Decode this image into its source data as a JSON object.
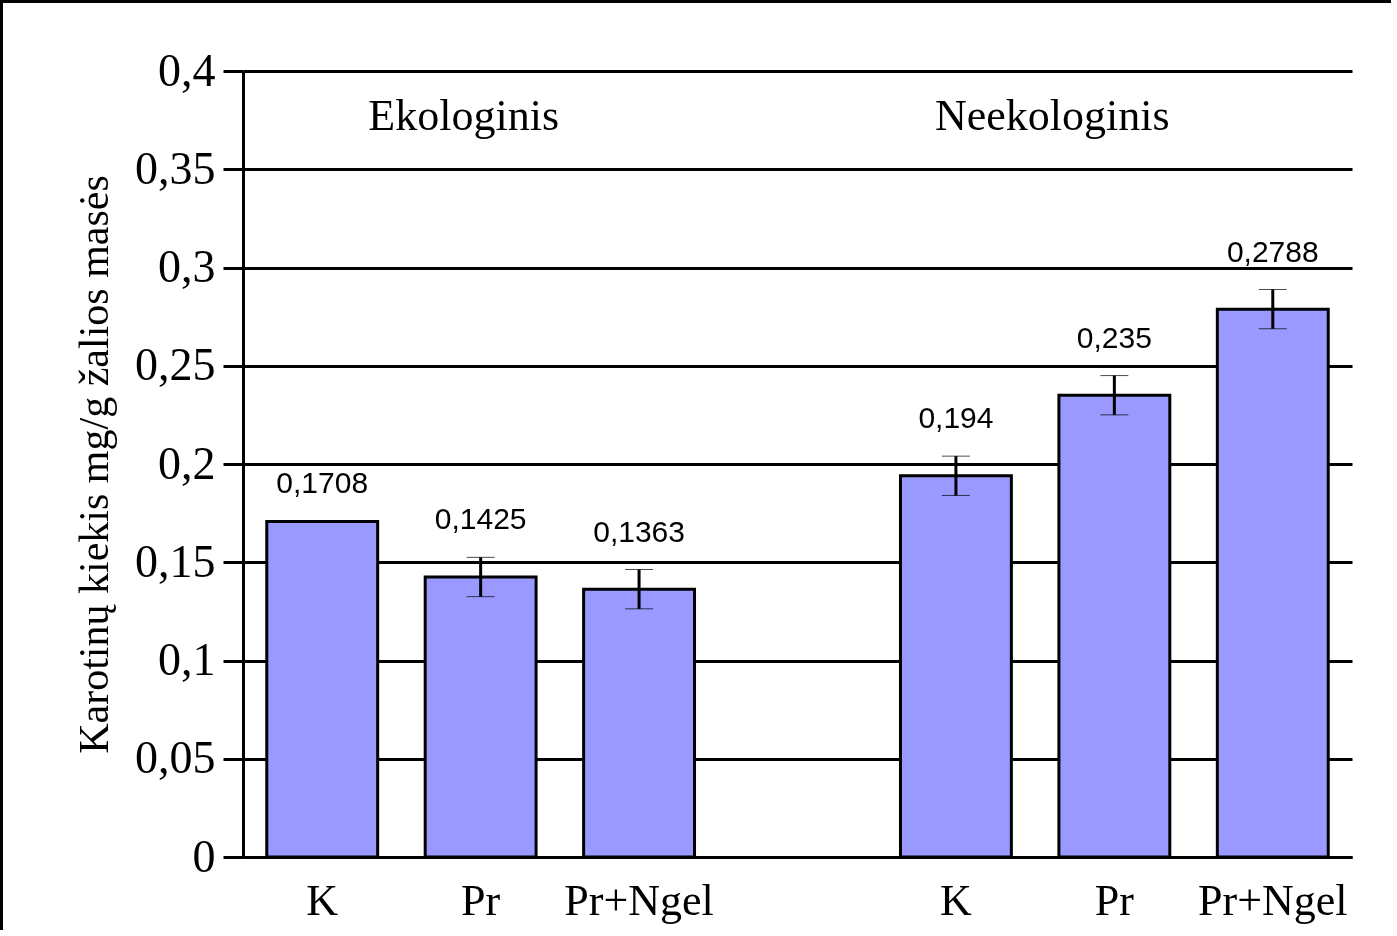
{
  "chart_data": {
    "type": "bar",
    "ylabel": "Karotinų kiekis mg/g žalios masės",
    "categories": [
      "K",
      "Pr",
      "Pr+Ngel",
      null,
      "K",
      "Pr",
      "Pr+Ngel"
    ],
    "values": [
      0.1708,
      0.1425,
      0.1363,
      null,
      0.194,
      0.235,
      0.2788
    ],
    "errors": [
      0,
      0.01,
      0.01,
      null,
      0.01,
      0.01,
      0.01
    ],
    "value_labels": [
      "0,1708",
      "0,1425",
      "0,1363",
      null,
      "0,194",
      "0,235",
      "0,2788"
    ],
    "color": "#9999ff",
    "ylim": [
      0,
      0.4
    ],
    "yticks": [
      {
        "value": 0,
        "label": "0"
      },
      {
        "value": 0.05,
        "label": "0,05"
      },
      {
        "value": 0.1,
        "label": "0,1"
      },
      {
        "value": 0.15,
        "label": "0,15"
      },
      {
        "value": 0.2,
        "label": "0,2"
      },
      {
        "value": 0.25,
        "label": "0,25"
      },
      {
        "value": 0.3,
        "label": "0,3"
      },
      {
        "value": 0.35,
        "label": "0,35"
      },
      {
        "value": 0.4,
        "label": "0,4"
      }
    ],
    "grid": "y",
    "annotations": [
      "Ekologinis",
      "Neekologinis"
    ]
  }
}
